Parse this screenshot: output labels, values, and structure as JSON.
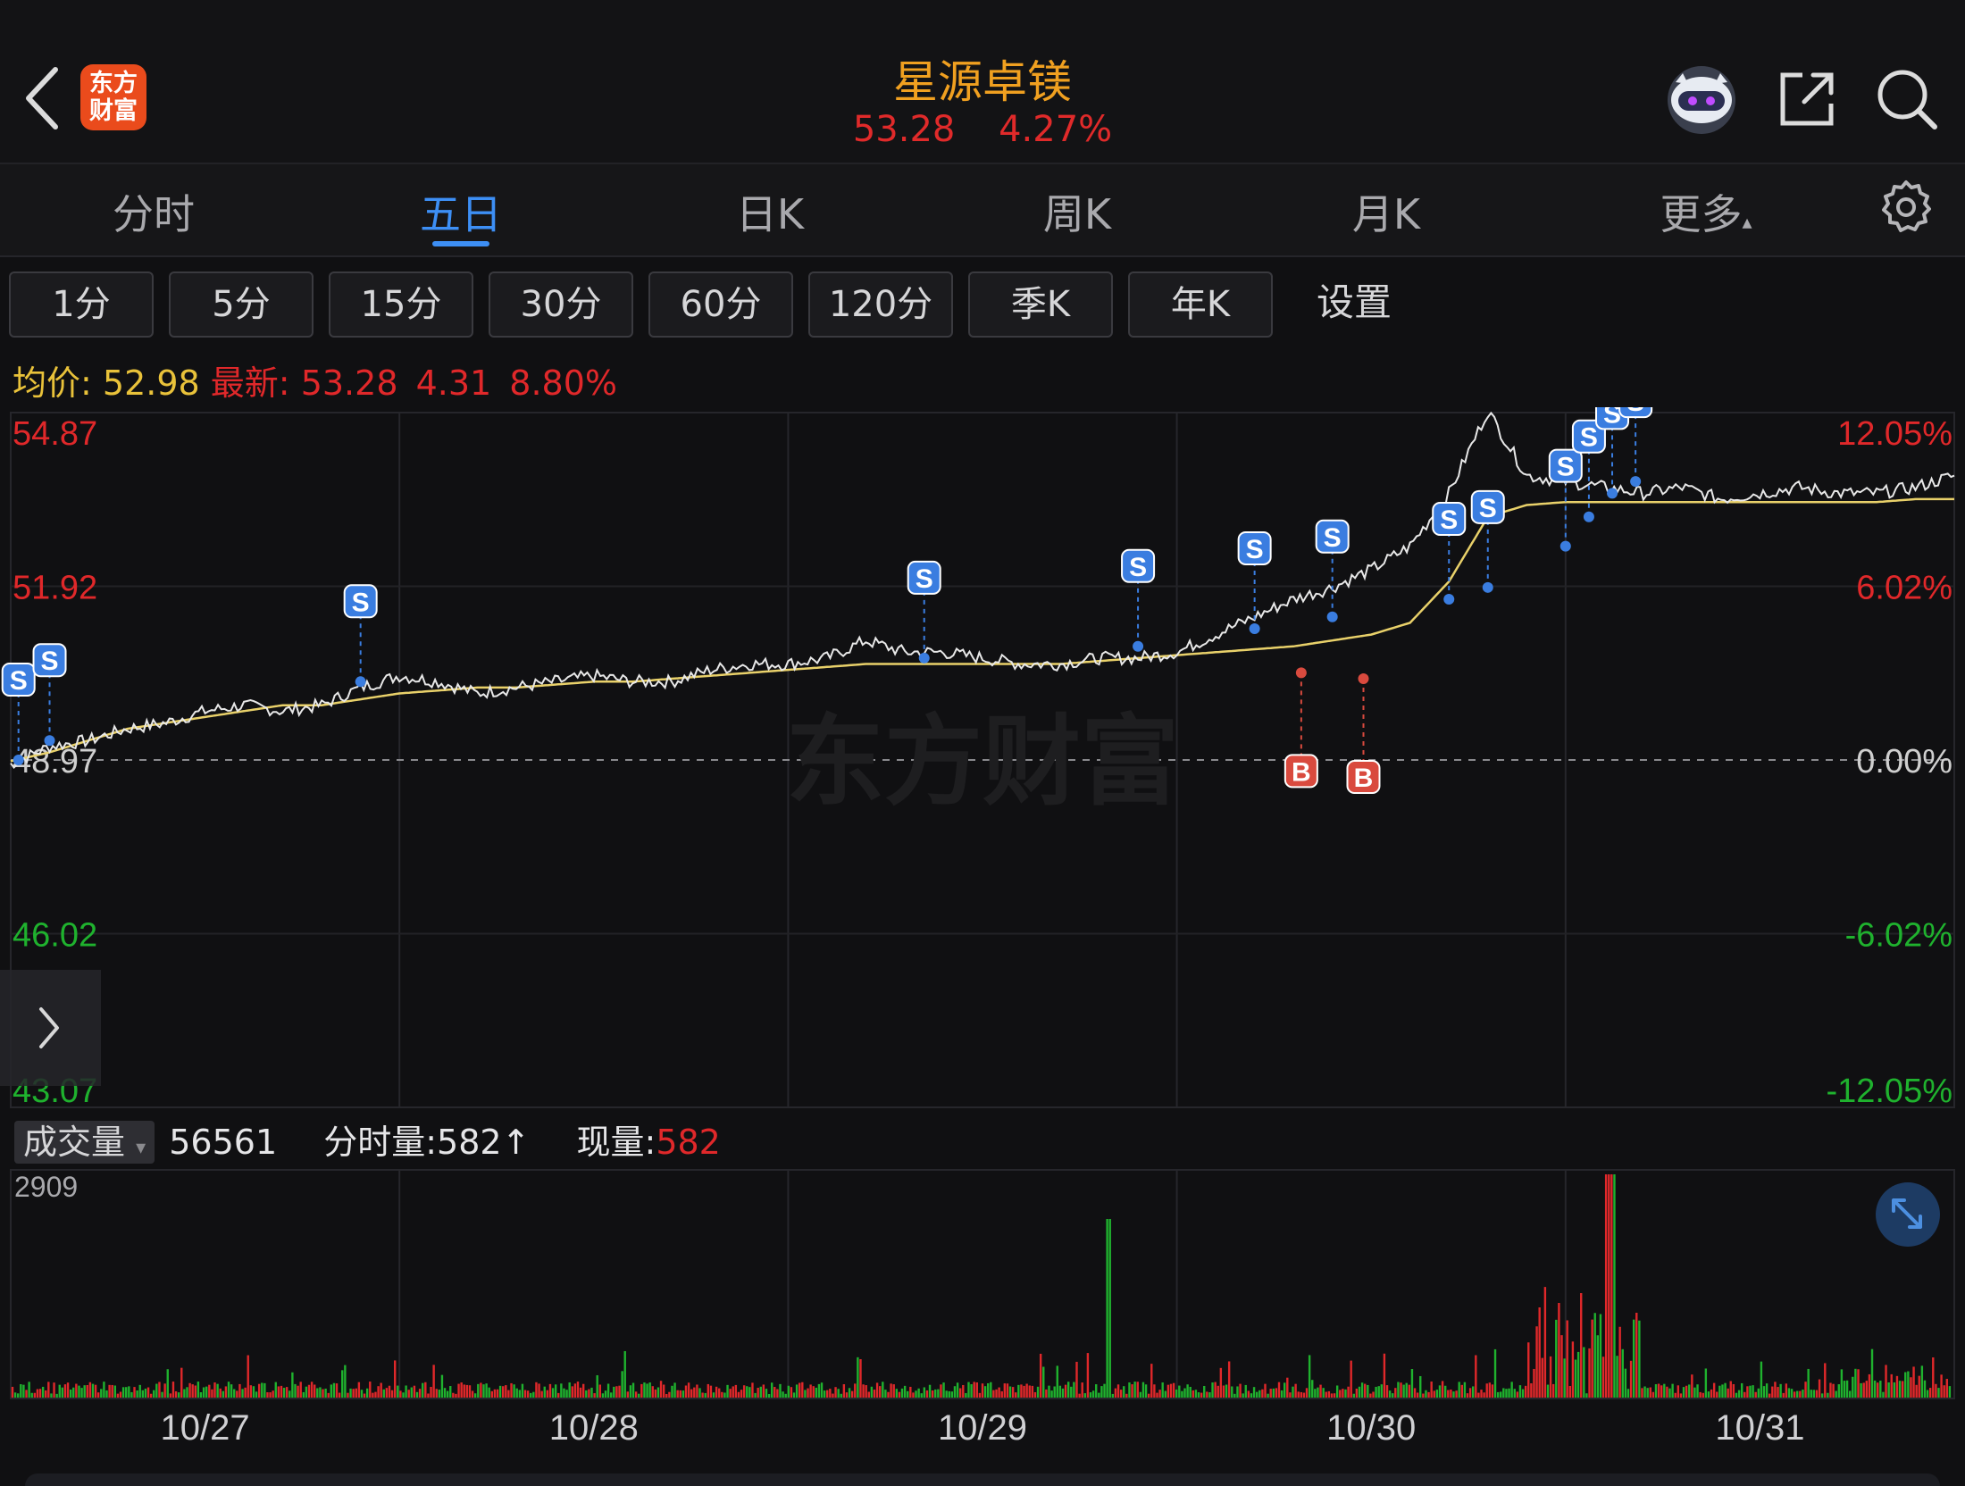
{
  "header": {
    "logo_line1": "东方",
    "logo_line2": "财富",
    "title": "星源卓镁",
    "price": "53.28",
    "change_pct": "4.27%"
  },
  "tabs": [
    {
      "label": "分时"
    },
    {
      "label": "五日"
    },
    {
      "label": "日K"
    },
    {
      "label": "周K"
    },
    {
      "label": "月K"
    },
    {
      "label": "更多"
    }
  ],
  "more_arrow": "▴",
  "periods": [
    "1分",
    "5分",
    "15分",
    "30分",
    "60分",
    "120分",
    "季K",
    "年K"
  ],
  "period_settings": "设置",
  "info": {
    "avg_label": "均价:",
    "avg_value": "52.98",
    "latest_label": "最新:",
    "latest_value": "53.28",
    "change_value": "4.31",
    "change_pct": "8.80%"
  },
  "chart_data": {
    "type": "line",
    "y_left_ticks": [
      "54.87",
      "51.92",
      "48.97",
      "46.02",
      "43.07"
    ],
    "y_right_ticks": [
      "12.05%",
      "6.02%",
      "0.00%",
      "-6.02%",
      "-12.05%"
    ],
    "ylim": [
      43.07,
      54.87
    ],
    "base_price": 48.97,
    "x_labels": [
      "10/27",
      "10/28",
      "10/29",
      "10/30",
      "10/31"
    ],
    "watermark": "东方财富",
    "series": [
      {
        "values": [
          48.9,
          49.2,
          49.3,
          49.5,
          49.6,
          49.8,
          49.9,
          49.8,
          49.9,
          50.2,
          50.4,
          50.3,
          50.1,
          50.2,
          50.3,
          50.4,
          50.3,
          50.3,
          50.5,
          50.6,
          50.6,
          50.7,
          51.0,
          50.8,
          50.8,
          50.7,
          50.6,
          50.6,
          50.7,
          50.7,
          50.8,
          51.1,
          51.4,
          51.7,
          51.9,
          52.2,
          52.6,
          53.5,
          54.9,
          53.8,
          53.7,
          53.6,
          53.5,
          53.6,
          53.4,
          53.5,
          53.6,
          53.5,
          53.5,
          53.6,
          53.8
        ]
      },
      {
        "values": [
          48.95,
          49.1,
          49.3,
          49.5,
          49.6,
          49.7,
          49.8,
          49.9,
          49.9,
          50.0,
          50.1,
          50.15,
          50.2,
          50.2,
          50.25,
          50.3,
          50.3,
          50.35,
          50.4,
          50.45,
          50.5,
          50.55,
          50.6,
          50.6,
          50.6,
          50.6,
          50.6,
          50.6,
          50.65,
          50.7,
          50.75,
          50.8,
          50.85,
          50.9,
          51.0,
          51.1,
          51.3,
          52.0,
          53.1,
          53.3,
          53.35,
          53.35,
          53.35,
          53.35,
          53.35,
          53.35,
          53.35,
          53.35,
          53.35,
          53.4,
          53.4
        ]
      }
    ],
    "markers": [
      {
        "type": "S",
        "x": 0.2,
        "y": 48.97
      },
      {
        "type": "S",
        "x": 1.0,
        "y": 49.3
      },
      {
        "type": "S",
        "x": 9.0,
        "y": 50.3
      },
      {
        "type": "S",
        "x": 23.5,
        "y": 50.7
      },
      {
        "type": "S",
        "x": 29.0,
        "y": 50.9
      },
      {
        "type": "S",
        "x": 32.0,
        "y": 51.2
      },
      {
        "type": "S",
        "x": 34.0,
        "y": 51.4
      },
      {
        "type": "S",
        "x": 37.0,
        "y": 51.7
      },
      {
        "type": "S",
        "x": 38.0,
        "y": 51.9
      },
      {
        "type": "S",
        "x": 40.0,
        "y": 52.6
      },
      {
        "type": "S",
        "x": 40.6,
        "y": 53.1
      },
      {
        "type": "S",
        "x": 41.2,
        "y": 53.5
      },
      {
        "type": "S",
        "x": 41.8,
        "y": 53.7
      },
      {
        "type": "B",
        "x": 33.2,
        "y": 50.45
      },
      {
        "type": "B",
        "x": 34.8,
        "y": 50.35
      }
    ],
    "volume": {
      "total_label": "成交量",
      "total_value": "56561",
      "bar_label": "分时量:582",
      "bar_arrow": "↑",
      "current_label": "现量:",
      "current_value": "582",
      "max_tick": "2909"
    }
  },
  "colors": {
    "price_line": "#e8e8e8",
    "avg_line": "#e9d16a",
    "up": "#e0282a",
    "down": "#1fb22e",
    "accent": "#3d8ff5",
    "sell_marker": "#3a7de0",
    "buy_marker": "#d94a3e"
  },
  "icons": [
    "back-arrow-icon",
    "robot-avatar-icon",
    "share-icon",
    "search-icon",
    "gear-icon",
    "chevron-right-icon",
    "expand-icon"
  ]
}
